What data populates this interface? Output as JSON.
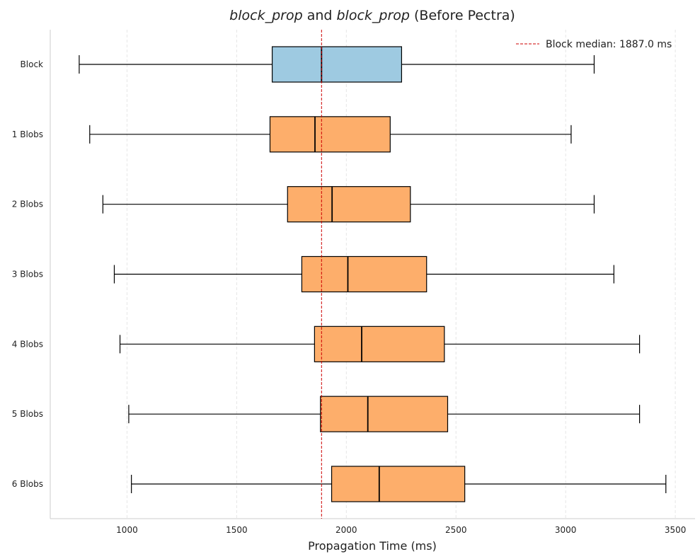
{
  "chart_data": {
    "type": "boxplot",
    "orientation": "horizontal",
    "title_parts": [
      {
        "text": "block_prop",
        "italic": true
      },
      {
        "text": " and ",
        "italic": false
      },
      {
        "text": "block_prop",
        "italic": true
      },
      {
        "text": " (Before Pectra)",
        "italic": false
      }
    ],
    "xlabel": "Propagation Time (ms)",
    "ylabel": "",
    "xlim": [
      650,
      3590
    ],
    "xticks": [
      1000,
      1500,
      2000,
      2500,
      3000,
      3500
    ],
    "grid": {
      "x": true,
      "y": false,
      "style": "dashed"
    },
    "legend": {
      "placement": "top-right",
      "entries": [
        {
          "label": "Block median: 1887.0 ms",
          "color": "#cc0000",
          "style": "dashed"
        }
      ]
    },
    "reference_line": {
      "value": 1887.0,
      "color": "#cc0000"
    },
    "colors": {
      "block": "#9ecae1",
      "blobs": "#fdae6b"
    },
    "boxes": [
      {
        "label": "Block",
        "whisker_low": 782,
        "q1": 1662,
        "median": 1887,
        "q3": 2252,
        "whisker_high": 3130,
        "color_key": "block"
      },
      {
        "label": "1 Blobs",
        "whisker_low": 830,
        "q1": 1652,
        "median": 1857,
        "q3": 2200,
        "whisker_high": 3025,
        "color_key": "blobs"
      },
      {
        "label": "2 Blobs",
        "whisker_low": 890,
        "q1": 1732,
        "median": 1935,
        "q3": 2292,
        "whisker_high": 3130,
        "color_key": "blobs"
      },
      {
        "label": "3 Blobs",
        "whisker_low": 942,
        "q1": 1797,
        "median": 2007,
        "q3": 2366,
        "whisker_high": 3220,
        "color_key": "blobs"
      },
      {
        "label": "4 Blobs",
        "whisker_low": 968,
        "q1": 1855,
        "median": 2070,
        "q3": 2447,
        "whisker_high": 3337,
        "color_key": "blobs"
      },
      {
        "label": "5 Blobs",
        "whisker_low": 1008,
        "q1": 1882,
        "median": 2098,
        "q3": 2462,
        "whisker_high": 3337,
        "color_key": "blobs"
      },
      {
        "label": "6 Blobs",
        "whisker_low": 1020,
        "q1": 1933,
        "median": 2150,
        "q3": 2540,
        "whisker_high": 3457,
        "color_key": "blobs"
      }
    ]
  }
}
